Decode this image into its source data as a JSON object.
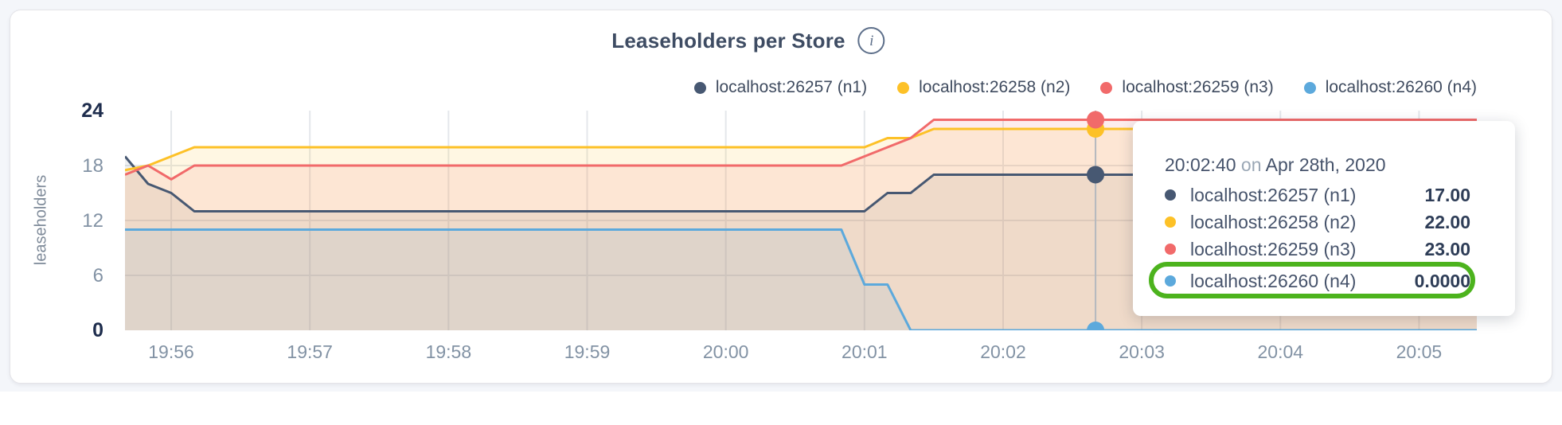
{
  "card": {
    "title": "Leaseholders per Store",
    "info_icon": "i"
  },
  "legend": [
    {
      "name": "localhost:26257 (n1)",
      "color": "#475872"
    },
    {
      "name": "localhost:26258 (n2)",
      "color": "#fdc127"
    },
    {
      "name": "localhost:26259 (n3)",
      "color": "#f16a6a"
    },
    {
      "name": "localhost:26260 (n4)",
      "color": "#5ca9dc"
    }
  ],
  "chart_data": {
    "type": "area",
    "title": "Leaseholders per Store",
    "xlabel": "",
    "ylabel": "leaseholders",
    "ylim": [
      0,
      24
    ],
    "y_ticks": [
      0,
      6,
      12,
      18,
      24
    ],
    "x_ticks": [
      "19:56",
      "19:57",
      "19:58",
      "19:59",
      "20:00",
      "20:01",
      "20:02",
      "20:03",
      "20:04",
      "20:05"
    ],
    "x_range": [
      "19:55:40",
      "20:05:25"
    ],
    "grid": true,
    "legend_position": "top-right",
    "series": [
      {
        "id": "n1",
        "name": "localhost:26257 (n1)",
        "color": "#475872",
        "fill_opacity": 0.09,
        "points": [
          [
            "19:55:40",
            19
          ],
          [
            "19:55:50",
            16
          ],
          [
            "19:56:00",
            15
          ],
          [
            "19:56:10",
            13
          ],
          [
            "20:01:00",
            13
          ],
          [
            "20:01:10",
            15
          ],
          [
            "20:01:20",
            15
          ],
          [
            "20:01:30",
            17
          ],
          [
            "20:05:25",
            17
          ]
        ]
      },
      {
        "id": "n2",
        "name": "localhost:26258 (n2)",
        "color": "#fdc127",
        "fill_opacity": 0.13,
        "points": [
          [
            "19:55:40",
            17.5
          ],
          [
            "19:55:50",
            18
          ],
          [
            "19:56:10",
            20
          ],
          [
            "20:01:00",
            20
          ],
          [
            "20:01:10",
            21
          ],
          [
            "20:01:20",
            21
          ],
          [
            "20:01:30",
            22
          ],
          [
            "20:05:25",
            22
          ]
        ]
      },
      {
        "id": "n3",
        "name": "localhost:26259 (n3)",
        "color": "#f16a6a",
        "fill_opacity": 0.12,
        "points": [
          [
            "19:55:40",
            17
          ],
          [
            "19:55:50",
            18
          ],
          [
            "19:56:00",
            16.5
          ],
          [
            "19:56:10",
            18
          ],
          [
            "20:00:50",
            18
          ],
          [
            "20:01:00",
            19
          ],
          [
            "20:01:10",
            20
          ],
          [
            "20:01:20",
            21
          ],
          [
            "20:01:30",
            23
          ],
          [
            "20:05:25",
            23
          ]
        ]
      },
      {
        "id": "n4",
        "name": "localhost:26260 (n4)",
        "color": "#5ca9dc",
        "fill_opacity": 0.1,
        "points": [
          [
            "19:55:40",
            11
          ],
          [
            "20:00:50",
            11
          ],
          [
            "20:01:00",
            5
          ],
          [
            "20:01:10",
            5
          ],
          [
            "20:01:20",
            0
          ],
          [
            "20:05:25",
            0
          ]
        ]
      }
    ],
    "hover": {
      "time": "20:02:40",
      "values": [
        17,
        22,
        23,
        0
      ]
    }
  },
  "tooltip": {
    "time": "20:02:40",
    "on_word": "on",
    "date": "Apr 28th, 2020",
    "highlight_color": "#4cb31d",
    "rows": [
      {
        "name": "localhost:26257 (n1)",
        "value": "17.00",
        "color": "#475872",
        "highlighted": false
      },
      {
        "name": "localhost:26258 (n2)",
        "value": "22.00",
        "color": "#fdc127",
        "highlighted": false
      },
      {
        "name": "localhost:26259 (n3)",
        "value": "23.00",
        "color": "#f16a6a",
        "highlighted": false
      },
      {
        "name": "localhost:26260 (n4)",
        "value": "0.0000",
        "color": "#5ca9dc",
        "highlighted": true
      }
    ]
  }
}
